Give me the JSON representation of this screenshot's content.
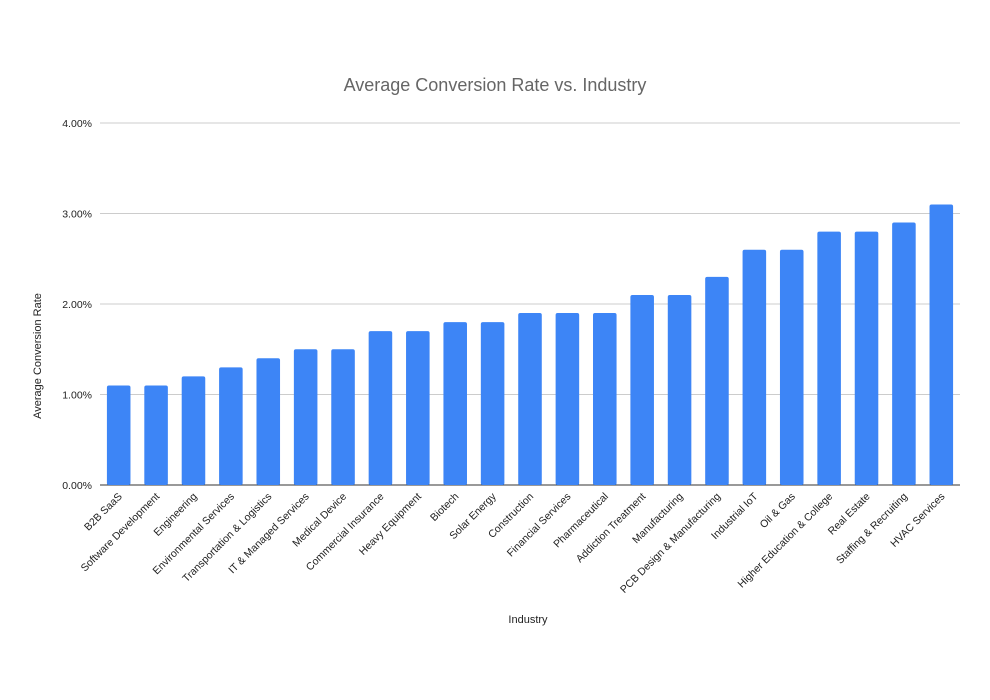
{
  "chart_data": {
    "type": "bar",
    "title": "Average Conversion Rate vs. Industry",
    "xlabel": "Industry",
    "ylabel": "Average Conversion Rate",
    "ylim": [
      0,
      4
    ],
    "yticks": [
      "0.00%",
      "1.00%",
      "2.00%",
      "3.00%",
      "4.00%"
    ],
    "grid": true,
    "bar_color": "#3d85f6",
    "categories": [
      "B2B SaaS",
      "Software Development",
      "Engineering",
      "Environmental Services",
      "Transportation & Logistics",
      "IT & Managed Services",
      "Medical Device",
      "Commercial Insurance",
      "Heavy Equipment",
      "Biotech",
      "Solar Energy",
      "Construction",
      "Financial Services",
      "Pharmaceutical",
      "Addiction Treatment",
      "Manufacturing",
      "PCB Design & Manufacturing",
      "Industrial IoT",
      "Oil & Gas",
      "Higher Education & College",
      "Real Estate",
      "Staffing & Recruiting",
      "HVAC Services"
    ],
    "values": [
      1.1,
      1.1,
      1.2,
      1.3,
      1.4,
      1.5,
      1.5,
      1.7,
      1.7,
      1.8,
      1.8,
      1.9,
      1.9,
      1.9,
      2.1,
      2.1,
      2.3,
      2.6,
      2.6,
      2.8,
      2.8,
      2.9,
      3.1
    ]
  }
}
